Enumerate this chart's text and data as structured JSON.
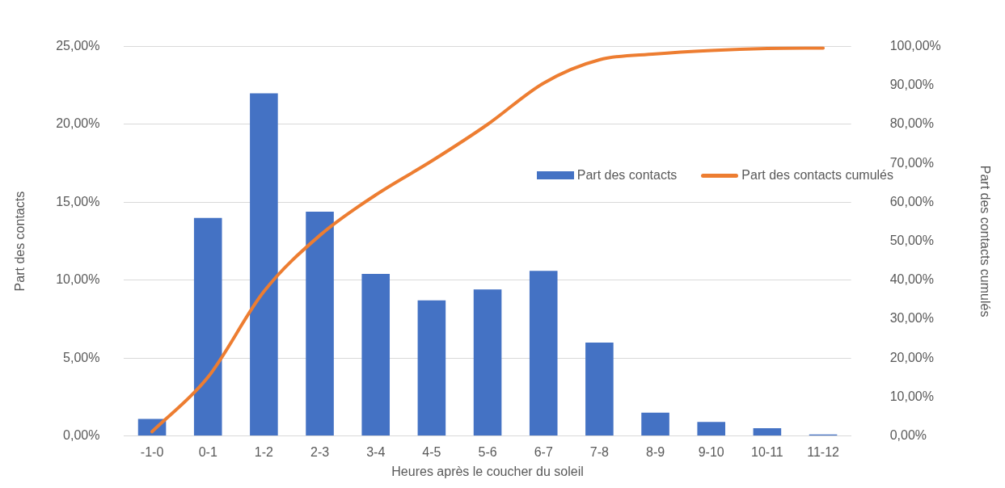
{
  "chart_data": {
    "type": "bar",
    "xlabel": "Heures après le coucher du soleil",
    "ylabel": "Part des contacts",
    "y2label": "Part des contacts cumulés",
    "categories": [
      "-1-0",
      "0-1",
      "1-2",
      "2-3",
      "3-4",
      "4-5",
      "5-6",
      "6-7",
      "7-8",
      "8-9",
      "9-10",
      "10-11",
      "11-12"
    ],
    "series": [
      {
        "name": "Part des contacts",
        "color": "#4472c4",
        "values": [
          1.1,
          14.0,
          22.0,
          14.4,
          10.4,
          8.7,
          9.4,
          10.6,
          6.0,
          1.5,
          0.9,
          0.5,
          0.1
        ]
      },
      {
        "name": "Part des contacts cumulés",
        "type": "line",
        "axis": "y2",
        "color": "#ed7d31",
        "values": [
          1.1,
          15.1,
          37.1,
          51.5,
          61.9,
          70.6,
          80.0,
          90.6,
          96.6,
          98.1,
          99.0,
          99.5,
          99.6
        ]
      }
    ],
    "ylim": [
      0,
      25
    ],
    "yticks": [
      {
        "value": 0,
        "label": "0,00%"
      },
      {
        "value": 5,
        "label": "5,00%"
      },
      {
        "value": 10,
        "label": "10,00%"
      },
      {
        "value": 15,
        "label": "15,00%"
      },
      {
        "value": 20,
        "label": "20,00%"
      },
      {
        "value": 25,
        "label": "25,00%"
      }
    ],
    "y2lim": [
      0,
      100
    ],
    "y2ticks": [
      {
        "value": 0,
        "label": "0,00%"
      },
      {
        "value": 10,
        "label": "10,00%"
      },
      {
        "value": 20,
        "label": "20,00%"
      },
      {
        "value": 30,
        "label": "30,00%"
      },
      {
        "value": 40,
        "label": "40,00%"
      },
      {
        "value": 50,
        "label": "50,00%"
      },
      {
        "value": 60,
        "label": "60,00%"
      },
      {
        "value": 70,
        "label": "70,00%"
      },
      {
        "value": 80,
        "label": "80,00%"
      },
      {
        "value": 90,
        "label": "90,00%"
      },
      {
        "value": 100,
        "label": "100,00%"
      }
    ],
    "grid": "y",
    "legend": "right",
    "marker": "none"
  }
}
